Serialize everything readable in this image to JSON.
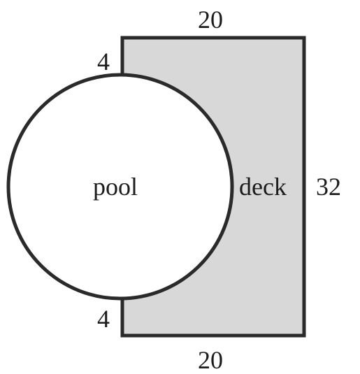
{
  "diagram": {
    "labels": {
      "top_width": "20",
      "bottom_width": "20",
      "right_height": "32",
      "top_gap": "4",
      "bottom_gap": "4",
      "pool": "pool",
      "deck": "deck"
    },
    "colors": {
      "deck_fill": "#d8d8d8",
      "outline": "#2a2a2a",
      "pool_fill": "#ffffff",
      "text": "#1c1c1c"
    }
  }
}
